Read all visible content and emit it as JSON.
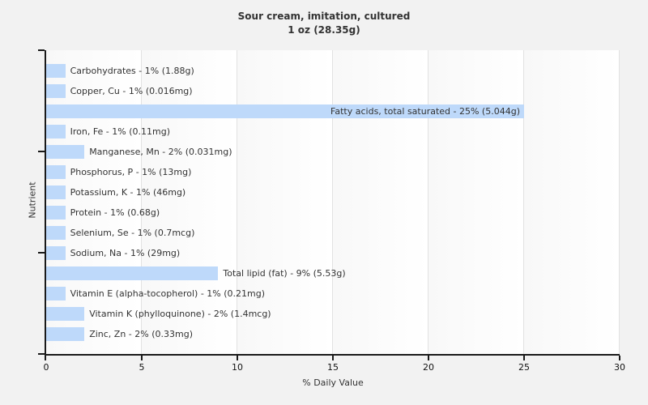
{
  "title": {
    "line1": "Sour cream, imitation, cultured",
    "line2": "1 oz (28.35g)"
  },
  "chart_data": {
    "type": "bar",
    "orientation": "horizontal",
    "title": "Sour cream, imitation, cultured",
    "subtitle": "1 oz (28.35g)",
    "xlabel": "% Daily Value",
    "ylabel": "Nutrient",
    "xlim": [
      0,
      30
    ],
    "xticks": [
      0,
      5,
      10,
      15,
      20,
      25,
      30
    ],
    "grid": "vertical",
    "legend": "none",
    "bar_color": "#bed9fa",
    "categories": [
      "Carbohydrates",
      "Copper, Cu",
      "Fatty acids, total saturated",
      "Iron, Fe",
      "Manganese, Mn",
      "Phosphorus, P",
      "Potassium, K",
      "Protein",
      "Selenium, Se",
      "Sodium, Na",
      "Total lipid (fat)",
      "Vitamin E (alpha-tocopherol)",
      "Vitamin K (phylloquinone)",
      "Zinc, Zn"
    ],
    "values": [
      1,
      1,
      25,
      1,
      2,
      1,
      1,
      1,
      1,
      1,
      9,
      1,
      2,
      2
    ],
    "bars": [
      {
        "category": "Carbohydrates",
        "percent": 1,
        "amount": "1.88g",
        "label": "Carbohydrates - 1% (1.88g)",
        "label_position": "outside"
      },
      {
        "category": "Copper, Cu",
        "percent": 1,
        "amount": "0.016mg",
        "label": "Copper, Cu - 1% (0.016mg)",
        "label_position": "outside"
      },
      {
        "category": "Fatty acids, total saturated",
        "percent": 25,
        "amount": "5.044g",
        "label": "Fatty acids, total saturated - 25% (5.044g)",
        "label_position": "inside"
      },
      {
        "category": "Iron, Fe",
        "percent": 1,
        "amount": "0.11mg",
        "label": "Iron, Fe - 1% (0.11mg)",
        "label_position": "outside"
      },
      {
        "category": "Manganese, Mn",
        "percent": 2,
        "amount": "0.031mg",
        "label": "Manganese, Mn - 2% (0.031mg)",
        "label_position": "outside"
      },
      {
        "category": "Phosphorus, P",
        "percent": 1,
        "amount": "13mg",
        "label": "Phosphorus, P - 1% (13mg)",
        "label_position": "outside"
      },
      {
        "category": "Potassium, K",
        "percent": 1,
        "amount": "46mg",
        "label": "Potassium, K - 1% (46mg)",
        "label_position": "outside"
      },
      {
        "category": "Protein",
        "percent": 1,
        "amount": "0.68g",
        "label": "Protein - 1% (0.68g)",
        "label_position": "outside"
      },
      {
        "category": "Selenium, Se",
        "percent": 1,
        "amount": "0.7mcg",
        "label": "Selenium, Se - 1% (0.7mcg)",
        "label_position": "outside"
      },
      {
        "category": "Sodium, Na",
        "percent": 1,
        "amount": "29mg",
        "label": "Sodium, Na - 1% (29mg)",
        "label_position": "outside"
      },
      {
        "category": "Total lipid (fat)",
        "percent": 9,
        "amount": "5.53g",
        "label": "Total lipid (fat) - 9% (5.53g)",
        "label_position": "outside"
      },
      {
        "category": "Vitamin E (alpha-tocopherol)",
        "percent": 1,
        "amount": "0.21mg",
        "label": "Vitamin E (alpha-tocopherol) - 1% (0.21mg)",
        "label_position": "outside"
      },
      {
        "category": "Vitamin K (phylloquinone)",
        "percent": 2,
        "amount": "1.4mcg",
        "label": "Vitamin K (phylloquinone) - 2% (1.4mcg)",
        "label_position": "outside"
      },
      {
        "category": "Zinc, Zn",
        "percent": 2,
        "amount": "0.33mg",
        "label": "Zinc, Zn - 2% (0.33mg)",
        "label_position": "outside"
      }
    ]
  }
}
